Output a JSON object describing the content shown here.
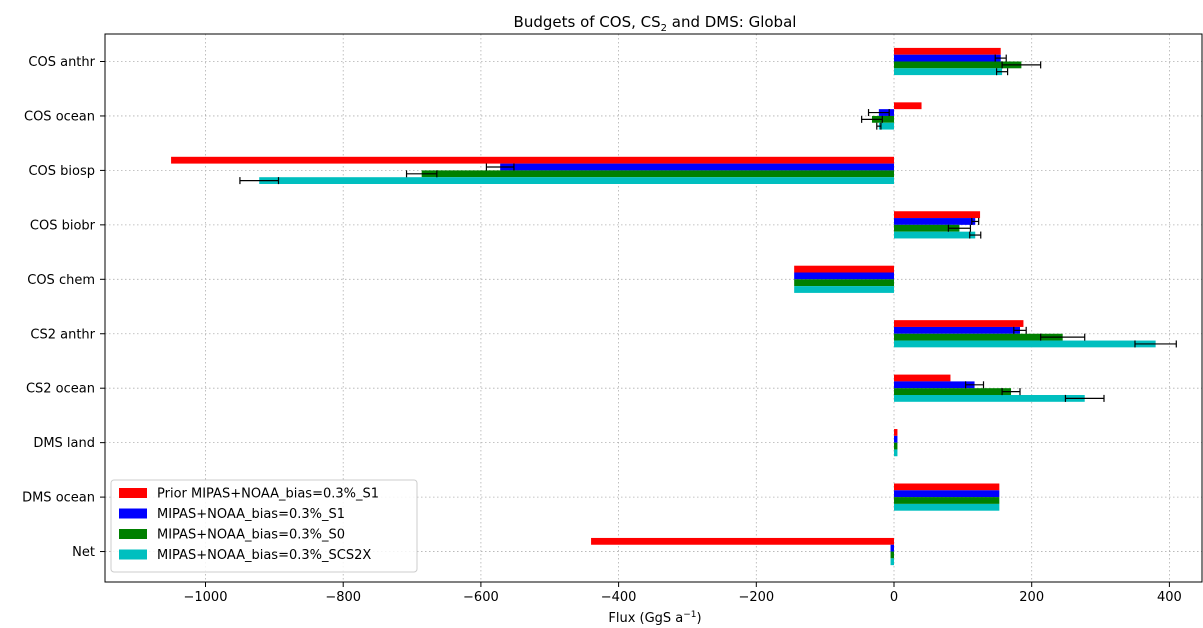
{
  "chart_data": {
    "type": "bar",
    "orientation": "horizontal",
    "title_main": "Budgets of COS, CS",
    "title_sub": "2",
    "title_rest": " and DMS: Global",
    "xlabel_main": "Flux (GgS a",
    "xlabel_sup": "−1",
    "xlabel_end": ")",
    "xlim": [
      -1150,
      450
    ],
    "xticks": [
      -1000,
      -800,
      -600,
      -400,
      -200,
      0,
      200,
      400
    ],
    "xtick_labels": [
      "−1000",
      "−800",
      "−600",
      "−400",
      "−200",
      "0",
      "200",
      "400"
    ],
    "grid": true,
    "legend_position": "lower-left",
    "categories": [
      "COS anthr",
      "COS ocean",
      "COS biosp",
      "COS biobr",
      "COS chem",
      "CS2 anthr",
      "CS2 ocean",
      "DMS land",
      "DMS ocean",
      "Net"
    ],
    "series": [
      {
        "name": "Prior MIPAS+NOAA_bias=0.3%_S1",
        "color": "#ff0000",
        "values": [
          155,
          40,
          -1050,
          125,
          -145,
          188,
          82,
          5,
          153,
          -440
        ],
        "errors": [
          null,
          null,
          null,
          null,
          null,
          null,
          null,
          null,
          null,
          null
        ]
      },
      {
        "name": "MIPAS+NOAA_bias=0.3%_S1",
        "color": "#0000ff",
        "values": [
          155,
          -22,
          -572,
          118,
          -145,
          183,
          117,
          5,
          153,
          -5
        ],
        "errors": [
          8,
          15,
          20,
          5,
          null,
          9,
          13,
          null,
          null,
          null
        ]
      },
      {
        "name": "MIPAS+NOAA_bias=0.3%_S0",
        "color": "#008000",
        "values": [
          185,
          -32,
          -686,
          95,
          -145,
          245,
          170,
          5,
          153,
          -5
        ],
        "errors": [
          28,
          15,
          22,
          16,
          null,
          32,
          13,
          null,
          null,
          null
        ]
      },
      {
        "name": "MIPAS+NOAA_bias=0.3%_SCS2X",
        "color": "#00bfbf",
        "values": [
          157,
          -22,
          -922,
          118,
          -145,
          380,
          277,
          5,
          153,
          -5
        ],
        "errors": [
          8,
          3,
          28,
          8,
          null,
          30,
          28,
          null,
          null,
          null
        ]
      }
    ]
  }
}
